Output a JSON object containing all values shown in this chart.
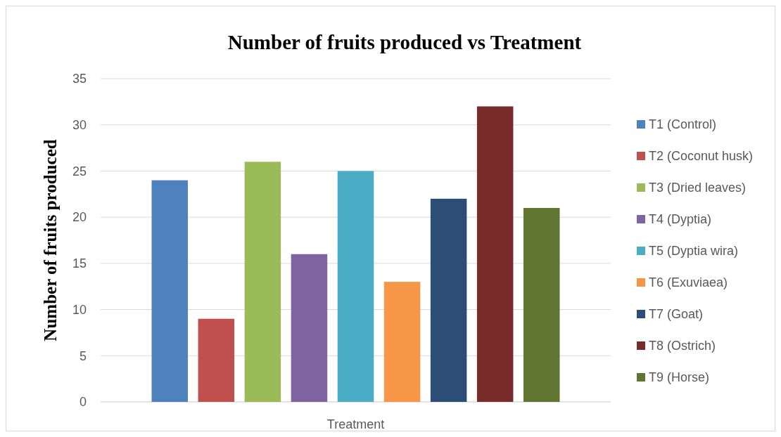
{
  "chart_data": {
    "type": "bar",
    "title": "Number of fruits produced vs Treatment",
    "xlabel": "Treatment",
    "ylabel": "Number of fruits produced",
    "categories": [
      null
    ],
    "series": [
      {
        "name": "T1 (Control)",
        "color": "#4f81bd",
        "values": [
          24
        ]
      },
      {
        "name": "T2 (Coconut husk)",
        "color": "#c0504d",
        "values": [
          9
        ]
      },
      {
        "name": "T3 (Dried leaves)",
        "color": "#9bbb59",
        "values": [
          26
        ]
      },
      {
        "name": "T4 (Dyptia)",
        "color": "#8064a2",
        "values": [
          16
        ]
      },
      {
        "name": "T5 (Dyptia wira)",
        "color": "#4bacc6",
        "values": [
          25
        ]
      },
      {
        "name": "T6 (Exuviaea)",
        "color": "#f79646",
        "values": [
          13
        ]
      },
      {
        "name": "T7 (Goat)",
        "color": "#2c4d75",
        "values": [
          22
        ]
      },
      {
        "name": "T8 (Ostrich)",
        "color": "#772c2a",
        "values": [
          32
        ]
      },
      {
        "name": "T9 (Horse)",
        "color": "#5f7530",
        "values": [
          21
        ]
      }
    ],
    "ylim": [
      0,
      35
    ],
    "yticks": [
      0,
      5,
      10,
      15,
      20,
      25,
      30,
      35
    ],
    "grid": "y",
    "legend": "right"
  }
}
